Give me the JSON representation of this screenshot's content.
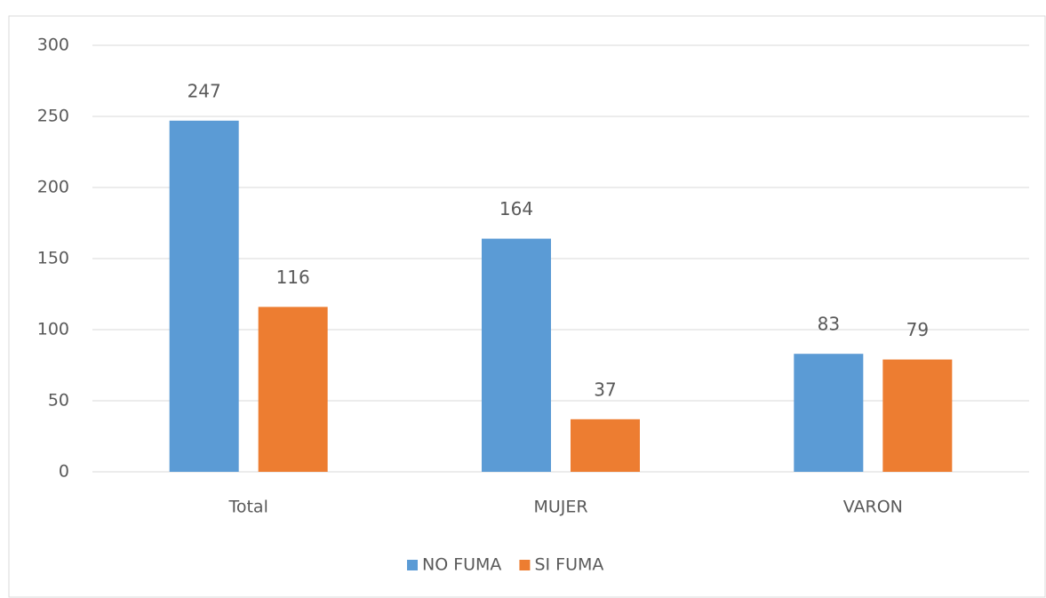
{
  "chart_data": {
    "type": "bar",
    "categories": [
      "Total",
      "MUJER",
      "VARON"
    ],
    "series": [
      {
        "name": "NO FUMA",
        "color": "#5b9bd5",
        "values": [
          247,
          164,
          83
        ]
      },
      {
        "name": "SI FUMA",
        "color": "#ed7d31",
        "values": [
          116,
          37,
          79
        ]
      }
    ],
    "ylim": [
      0,
      300
    ],
    "yticks": [
      0,
      50,
      100,
      150,
      200,
      250,
      300
    ],
    "grid": true,
    "legend": "bottom"
  }
}
